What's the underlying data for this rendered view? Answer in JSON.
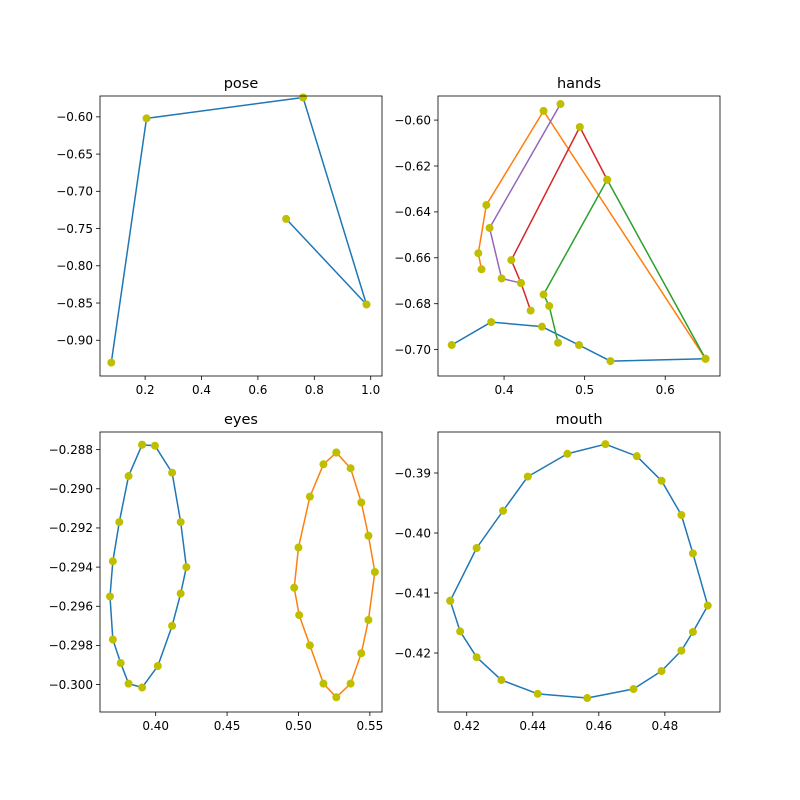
{
  "colors": {
    "marker": "#bfbf00",
    "C0": "#1f77b4",
    "C1": "#ff7f0e",
    "C2": "#2ca02c",
    "C3": "#d62728",
    "C4": "#9467bd"
  },
  "chart_data": [
    {
      "type": "line",
      "title": "pose",
      "xlim": [
        0.04,
        1.04
      ],
      "ylim": [
        -0.948,
        -0.572
      ],
      "xticks": [
        0.2,
        0.4,
        0.6,
        0.8,
        1.0
      ],
      "xtick_labels": [
        "0.2",
        "0.4",
        "0.6",
        "0.8",
        "1.0"
      ],
      "yticks": [
        -0.6,
        -0.65,
        -0.7,
        -0.75,
        -0.8,
        -0.85,
        -0.9
      ],
      "ytick_labels": [
        "−0.60",
        "−0.65",
        "−0.70",
        "−0.75",
        "−0.80",
        "−0.85",
        "−0.90"
      ],
      "series": [
        {
          "color": "#1f77b4",
          "x": [
            0.08,
            0.205,
            0.76,
            0.985,
            0.7
          ],
          "y": [
            -0.93,
            -0.602,
            -0.574,
            -0.852,
            -0.737
          ]
        }
      ]
    },
    {
      "type": "line",
      "title": "hands",
      "xlim": [
        0.318,
        0.668
      ],
      "ylim": [
        -0.7115,
        -0.5895
      ],
      "xticks": [
        0.4,
        0.5,
        0.6
      ],
      "xtick_labels": [
        "0.4",
        "0.5",
        "0.6"
      ],
      "yticks": [
        -0.6,
        -0.62,
        -0.64,
        -0.66,
        -0.68,
        -0.7
      ],
      "ytick_labels": [
        "−0.60",
        "−0.62",
        "−0.64",
        "−0.66",
        "−0.68",
        "−0.70"
      ],
      "series": [
        {
          "color": "#1f77b4",
          "x": [
            0.335,
            0.384,
            0.447,
            0.493,
            0.532,
            0.65
          ],
          "y": [
            -0.698,
            -0.688,
            -0.69,
            -0.698,
            -0.705,
            -0.704
          ]
        },
        {
          "color": "#ff7f0e",
          "x": [
            0.65,
            0.449,
            0.378,
            0.368,
            0.372
          ],
          "y": [
            -0.704,
            -0.596,
            -0.637,
            -0.658,
            -0.665
          ]
        },
        {
          "color": "#2ca02c",
          "x": [
            0.65,
            0.528,
            0.449,
            0.456,
            0.467
          ],
          "y": [
            -0.704,
            -0.626,
            -0.676,
            -0.681,
            -0.697
          ]
        },
        {
          "color": "#d62728",
          "x": [
            0.528,
            0.494,
            0.409,
            0.421,
            0.433
          ],
          "y": [
            -0.626,
            -0.603,
            -0.661,
            -0.671,
            -0.683
          ]
        },
        {
          "color": "#9467bd",
          "x": [
            0.47,
            0.382,
            0.397,
            0.421
          ],
          "y": [
            -0.593,
            -0.647,
            -0.669,
            -0.671
          ]
        }
      ]
    },
    {
      "type": "line",
      "title": "eyes",
      "xlim": [
        0.361,
        0.5585
      ],
      "ylim": [
        -0.3014,
        -0.2871
      ],
      "xticks": [
        0.4,
        0.45,
        0.5,
        0.55
      ],
      "xtick_labels": [
        "0.40",
        "0.45",
        "0.50",
        "0.55"
      ],
      "yticks": [
        -0.288,
        -0.29,
        -0.292,
        -0.294,
        -0.296,
        -0.298,
        -0.3
      ],
      "ytick_labels": [
        "−0.288",
        "−0.290",
        "−0.292",
        "−0.294",
        "−0.296",
        "−0.298",
        "−0.300"
      ],
      "series": [
        {
          "color": "#1f77b4",
          "x": [
            0.3905,
            0.3995,
            0.4115,
            0.4175,
            0.4215,
            0.4175,
            0.4115,
            0.4015,
            0.3905,
            0.381,
            0.3755,
            0.37,
            0.368,
            0.37,
            0.3745,
            0.381,
            0.3905
          ],
          "y": [
            -0.28775,
            -0.2878,
            -0.28918,
            -0.2917,
            -0.294,
            -0.29535,
            -0.297,
            -0.29905,
            -0.30015,
            -0.29995,
            -0.2989,
            -0.2977,
            -0.2955,
            -0.2937,
            -0.2917,
            -0.28935,
            -0.28775
          ]
        },
        {
          "color": "#ff7f0e",
          "x": [
            0.5265,
            0.5365,
            0.544,
            0.549,
            0.5535,
            0.549,
            0.544,
            0.5365,
            0.5265,
            0.5175,
            0.508,
            0.5005,
            0.497,
            0.5,
            0.508,
            0.5175,
            0.5265
          ],
          "y": [
            -0.28815,
            -0.28895,
            -0.2907,
            -0.2924,
            -0.29425,
            -0.2967,
            -0.2984,
            -0.29995,
            -0.30065,
            -0.29995,
            -0.298,
            -0.29645,
            -0.29505,
            -0.293,
            -0.2904,
            -0.28875,
            -0.28815
          ]
        }
      ]
    },
    {
      "type": "line",
      "title": "mouth",
      "xlim": [
        0.4113,
        0.4967
      ],
      "ylim": [
        -0.42983,
        -0.38317
      ],
      "xticks": [
        0.42,
        0.44,
        0.46,
        0.48
      ],
      "xtick_labels": [
        "0.42",
        "0.44",
        "0.46",
        "0.48"
      ],
      "yticks": [
        -0.39,
        -0.4,
        -0.41,
        -0.42
      ],
      "ytick_labels": [
        "−0.39",
        "−0.40",
        "−0.41",
        "−0.42"
      ],
      "series": [
        {
          "color": "#1f77b4",
          "x": [
            0.415,
            0.418,
            0.423,
            0.4305,
            0.4415,
            0.4565,
            0.4705,
            0.479,
            0.485,
            0.4885,
            0.493,
            0.4885,
            0.485,
            0.479,
            0.4715,
            0.462,
            0.4505,
            0.4385,
            0.431,
            0.423,
            0.415
          ],
          "y": [
            -0.4113,
            -0.4164,
            -0.4207,
            -0.4245,
            -0.4268,
            -0.4275,
            -0.426,
            -0.423,
            -0.4196,
            -0.4165,
            -0.4121,
            -0.4034,
            -0.397,
            -0.3913,
            -0.3872,
            -0.3852,
            -0.3868,
            -0.3906,
            -0.3963,
            -0.4025,
            -0.4113
          ]
        }
      ]
    }
  ]
}
